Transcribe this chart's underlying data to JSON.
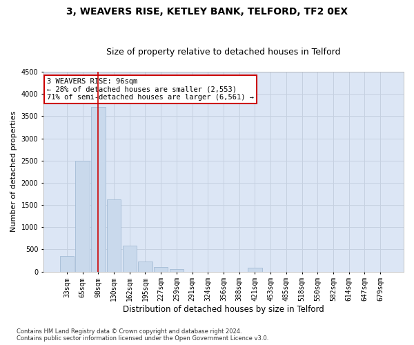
{
  "title": "3, WEAVERS RISE, KETLEY BANK, TELFORD, TF2 0EX",
  "subtitle": "Size of property relative to detached houses in Telford",
  "xlabel": "Distribution of detached houses by size in Telford",
  "ylabel": "Number of detached properties",
  "categories": [
    "33sqm",
    "65sqm",
    "98sqm",
    "130sqm",
    "162sqm",
    "195sqm",
    "227sqm",
    "259sqm",
    "291sqm",
    "324sqm",
    "356sqm",
    "388sqm",
    "421sqm",
    "453sqm",
    "485sqm",
    "518sqm",
    "550sqm",
    "582sqm",
    "614sqm",
    "647sqm",
    "679sqm"
  ],
  "values": [
    350,
    2500,
    3700,
    1630,
    590,
    230,
    100,
    60,
    0,
    0,
    0,
    0,
    80,
    0,
    0,
    0,
    0,
    0,
    0,
    0,
    0
  ],
  "bar_color": "#c9d9ec",
  "bar_edge_color": "#9ab5d0",
  "vline_x_index": 2,
  "vline_color": "#cc0000",
  "annotation_text": "3 WEAVERS RISE: 96sqm\n← 28% of detached houses are smaller (2,553)\n71% of semi-detached houses are larger (6,561) →",
  "annotation_box_color": "#ffffff",
  "annotation_box_edge_color": "#cc0000",
  "ylim": [
    0,
    4500
  ],
  "yticks": [
    0,
    500,
    1000,
    1500,
    2000,
    2500,
    3000,
    3500,
    4000,
    4500
  ],
  "footer": "Contains HM Land Registry data © Crown copyright and database right 2024.\nContains public sector information licensed under the Open Government Licence v3.0.",
  "bg_color": "#ffffff",
  "plot_bg_color": "#dce6f5",
  "grid_color": "#c5d0e0",
  "title_fontsize": 10,
  "subtitle_fontsize": 9,
  "tick_fontsize": 7,
  "ylabel_fontsize": 8,
  "xlabel_fontsize": 8.5,
  "footer_fontsize": 6,
  "annot_fontsize": 7.5
}
